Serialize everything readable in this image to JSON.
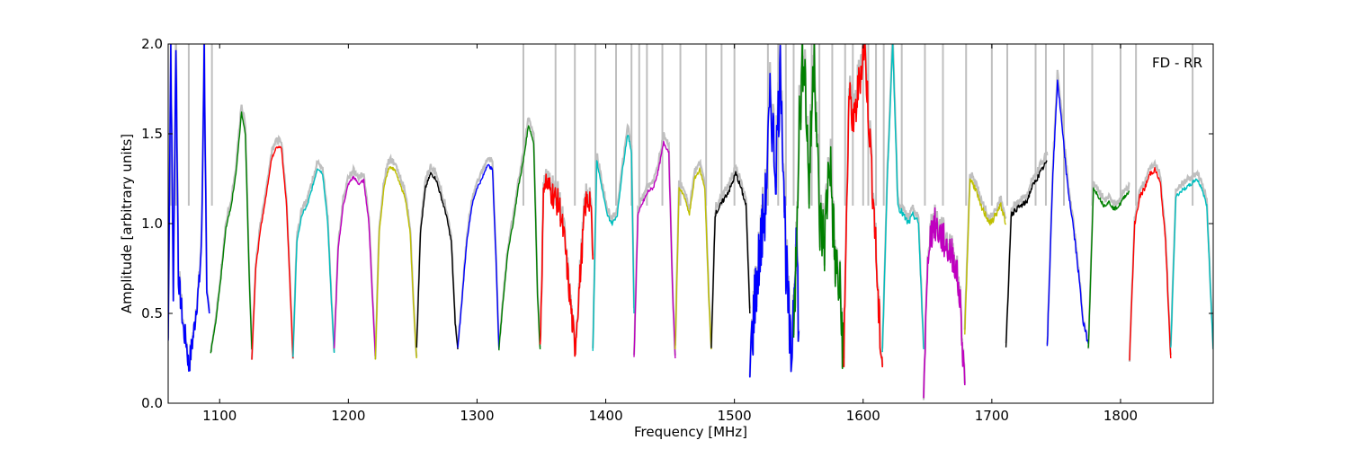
{
  "chart_data": {
    "type": "line",
    "title": "",
    "xlabel": "Frequency [MHz]",
    "ylabel": "Amplitude [arbitrary units]",
    "xlim": [
      1060,
      1872
    ],
    "ylim": [
      0.0,
      2.0
    ],
    "x_ticks": [
      1100,
      1200,
      1300,
      1400,
      1500,
      1600,
      1700,
      1800
    ],
    "y_ticks": [
      0.0,
      0.5,
      1.0,
      1.5,
      2.0
    ],
    "y_tick_labels": [
      "0.0",
      "0.5",
      "1.0",
      "1.5",
      "2.0"
    ],
    "annotation": "FD - RR",
    "legend": "none",
    "grid": false,
    "reference_color": "#bfbfbf",
    "reference_spikes": [
      1062,
      1066,
      1076,
      1094,
      1336,
      1361,
      1376,
      1392,
      1408,
      1420,
      1426,
      1432,
      1444,
      1458,
      1478,
      1490,
      1500,
      1526,
      1534,
      1540,
      1546,
      1560,
      1566,
      1576,
      1586,
      1592,
      1600,
      1604,
      1610,
      1616,
      1630,
      1648,
      1662,
      1680,
      1700,
      1712,
      1734,
      1742,
      1756,
      1778,
      1800,
      1812,
      1856
    ],
    "bands": [
      {
        "color": "#0000ff",
        "x": [
          1060,
          1062,
          1064,
          1066,
          1068,
          1070,
          1072,
          1074,
          1076,
          1078,
          1080,
          1082,
          1084,
          1086,
          1088,
          1090,
          1092
        ],
        "y": [
          0.35,
          2.0,
          0.6,
          2.0,
          0.7,
          0.55,
          0.4,
          0.35,
          0.2,
          0.3,
          0.4,
          0.55,
          0.65,
          0.9,
          2.0,
          0.55,
          0.5
        ],
        "noise": 0.07
      },
      {
        "color": "#008000",
        "x": [
          1093,
          1097,
          1101,
          1105,
          1109,
          1113,
          1117,
          1120,
          1123,
          1125
        ],
        "y": [
          0.28,
          0.45,
          0.7,
          0.98,
          1.1,
          1.3,
          1.62,
          1.5,
          0.7,
          0.3
        ],
        "noise": 0.008
      },
      {
        "color": "#ff0000",
        "x": [
          1125,
          1128,
          1132,
          1136,
          1140,
          1144,
          1148,
          1152,
          1155,
          1157
        ],
        "y": [
          0.25,
          0.75,
          0.98,
          1.15,
          1.35,
          1.43,
          1.42,
          1.1,
          0.6,
          0.25
        ],
        "noise": 0.008
      },
      {
        "color": "#00bfbf",
        "x": [
          1157,
          1160,
          1164,
          1168,
          1172,
          1176,
          1180,
          1184,
          1187,
          1189
        ],
        "y": [
          0.26,
          0.9,
          1.05,
          1.1,
          1.2,
          1.31,
          1.28,
          1.0,
          0.55,
          0.28
        ],
        "noise": 0.008
      },
      {
        "color": "#bf00bf",
        "x": [
          1189,
          1192,
          1196,
          1200,
          1204,
          1208,
          1212,
          1216,
          1219,
          1221
        ],
        "y": [
          0.3,
          0.85,
          1.1,
          1.22,
          1.26,
          1.22,
          1.24,
          1.0,
          0.55,
          0.26
        ],
        "noise": 0.008
      },
      {
        "color": "#bfbf00",
        "x": [
          1221,
          1224,
          1228,
          1232,
          1236,
          1240,
          1244,
          1248,
          1251,
          1253
        ],
        "y": [
          0.25,
          0.95,
          1.22,
          1.32,
          1.3,
          1.22,
          1.15,
          0.95,
          0.5,
          0.25
        ],
        "noise": 0.008
      },
      {
        "color": "#000000",
        "x": [
          1253,
          1256,
          1260,
          1264,
          1268,
          1272,
          1276,
          1280,
          1283,
          1285
        ],
        "y": [
          0.3,
          0.95,
          1.2,
          1.28,
          1.25,
          1.15,
          1.05,
          0.9,
          0.45,
          0.3
        ],
        "noise": 0.01
      },
      {
        "color": "#0000ff",
        "x": [
          1285,
          1288,
          1292,
          1296,
          1300,
          1304,
          1308,
          1312,
          1315,
          1317
        ],
        "y": [
          0.3,
          0.55,
          0.9,
          1.1,
          1.2,
          1.25,
          1.33,
          1.3,
          0.75,
          0.3
        ],
        "noise": 0.008
      },
      {
        "color": "#008000",
        "x": [
          1317,
          1320,
          1324,
          1328,
          1332,
          1336,
          1340,
          1344,
          1347,
          1349
        ],
        "y": [
          0.3,
          0.55,
          0.85,
          1.0,
          1.2,
          1.35,
          1.55,
          1.45,
          0.6,
          0.3
        ],
        "noise": 0.008
      },
      {
        "color": "#ff0000",
        "x": [
          1349,
          1352,
          1356,
          1360,
          1364,
          1368,
          1372,
          1376,
          1380,
          1384,
          1388,
          1390
        ],
        "y": [
          0.3,
          1.25,
          1.2,
          1.15,
          1.1,
          0.9,
          0.6,
          0.3,
          0.7,
          1.1,
          1.15,
          0.8
        ],
        "noise": 0.08
      },
      {
        "color": "#00bfbf",
        "x": [
          1390,
          1393,
          1397,
          1401,
          1405,
          1409,
          1413,
          1417,
          1420,
          1422
        ],
        "y": [
          0.3,
          1.35,
          1.2,
          1.05,
          1.0,
          1.05,
          1.3,
          1.5,
          1.4,
          0.5
        ],
        "noise": 0.01
      },
      {
        "color": "#bf00bf",
        "x": [
          1422,
          1425,
          1429,
          1433,
          1437,
          1441,
          1445,
          1449,
          1452,
          1454
        ],
        "y": [
          0.25,
          1.05,
          1.12,
          1.18,
          1.2,
          1.3,
          1.45,
          1.4,
          0.6,
          0.25
        ],
        "noise": 0.01
      },
      {
        "color": "#bfbf00",
        "x": [
          1454,
          1457,
          1461,
          1465,
          1469,
          1473,
          1477,
          1480,
          1482
        ],
        "y": [
          0.3,
          1.2,
          1.15,
          1.05,
          1.25,
          1.3,
          1.2,
          0.6,
          0.3
        ],
        "noise": 0.01
      },
      {
        "color": "#000000",
        "x": [
          1482,
          1485,
          1489,
          1493,
          1497,
          1501,
          1505,
          1509,
          1512
        ],
        "y": [
          0.3,
          1.05,
          1.1,
          1.15,
          1.2,
          1.28,
          1.2,
          1.1,
          0.5
        ],
        "noise": 0.015
      },
      {
        "color": "#0000ff",
        "x": [
          1512,
          1516,
          1520,
          1524,
          1528,
          1532,
          1536,
          1540,
          1544,
          1548,
          1550
        ],
        "y": [
          0.2,
          0.6,
          0.85,
          1.1,
          1.7,
          1.3,
          1.9,
          0.8,
          0.2,
          1.0,
          0.4
        ],
        "noise": 0.2
      },
      {
        "color": "#008000",
        "x": [
          1546,
          1550,
          1554,
          1558,
          1562,
          1566,
          1570,
          1574,
          1578,
          1582,
          1585
        ],
        "y": [
          0.3,
          1.5,
          2.0,
          1.2,
          2.0,
          1.0,
          0.9,
          1.4,
          0.8,
          0.6,
          0.25
        ],
        "noise": 0.2
      },
      {
        "color": "#ff0000",
        "x": [
          1585,
          1589,
          1593,
          1597,
          1601,
          1605,
          1609,
          1612,
          1615
        ],
        "y": [
          0.3,
          1.7,
          1.55,
          1.8,
          2.0,
          1.5,
          1.0,
          0.5,
          0.2
        ],
        "noise": 0.12
      },
      {
        "color": "#00bfbf",
        "x": [
          1615,
          1619,
          1623,
          1627,
          1631,
          1635,
          1639,
          1643,
          1647
        ],
        "y": [
          0.3,
          1.3,
          2.0,
          1.1,
          1.05,
          1.0,
          1.05,
          1.0,
          0.3
        ],
        "noise": 0.02
      },
      {
        "color": "#bf00bf",
        "x": [
          1647,
          1651,
          1655,
          1659,
          1663,
          1667,
          1671,
          1675,
          1679
        ],
        "y": [
          0.1,
          0.9,
          1.0,
          0.95,
          0.9,
          0.85,
          0.8,
          0.6,
          0.1
        ],
        "noise": 0.1
      },
      {
        "color": "#bfbf00",
        "x": [
          1679,
          1683,
          1687,
          1691,
          1695,
          1699,
          1703,
          1707,
          1711
        ],
        "y": [
          0.4,
          1.25,
          1.2,
          1.1,
          1.05,
          1.0,
          1.05,
          1.1,
          1.0
        ],
        "noise": 0.02
      },
      {
        "color": "#000000",
        "x": [
          1711,
          1715,
          1719,
          1723,
          1727,
          1731,
          1735,
          1739,
          1743
        ],
        "y": [
          0.3,
          1.05,
          1.08,
          1.1,
          1.12,
          1.2,
          1.25,
          1.3,
          1.35
        ],
        "noise": 0.015
      },
      {
        "color": "#0000ff",
        "x": [
          1743,
          1747,
          1751,
          1755,
          1759,
          1763,
          1767,
          1771,
          1775
        ],
        "y": [
          0.3,
          1.2,
          1.8,
          1.5,
          1.2,
          1.0,
          0.75,
          0.45,
          0.33
        ],
        "noise": 0.02
      },
      {
        "color": "#008000",
        "x": [
          1775,
          1779,
          1783,
          1787,
          1791,
          1795,
          1799,
          1803,
          1807
        ],
        "y": [
          0.3,
          1.2,
          1.15,
          1.1,
          1.12,
          1.08,
          1.1,
          1.15,
          1.18
        ],
        "noise": 0.01
      },
      {
        "color": "#ff0000",
        "x": [
          1807,
          1811,
          1815,
          1819,
          1823,
          1827,
          1831,
          1835,
          1839
        ],
        "y": [
          0.25,
          1.0,
          1.15,
          1.2,
          1.28,
          1.3,
          1.22,
          0.9,
          0.25
        ],
        "noise": 0.015
      },
      {
        "color": "#00bfbf",
        "x": [
          1839,
          1843,
          1847,
          1851,
          1855,
          1859,
          1863,
          1867,
          1872
        ],
        "y": [
          0.3,
          1.15,
          1.18,
          1.2,
          1.22,
          1.25,
          1.2,
          1.1,
          0.3
        ],
        "noise": 0.01
      }
    ]
  }
}
